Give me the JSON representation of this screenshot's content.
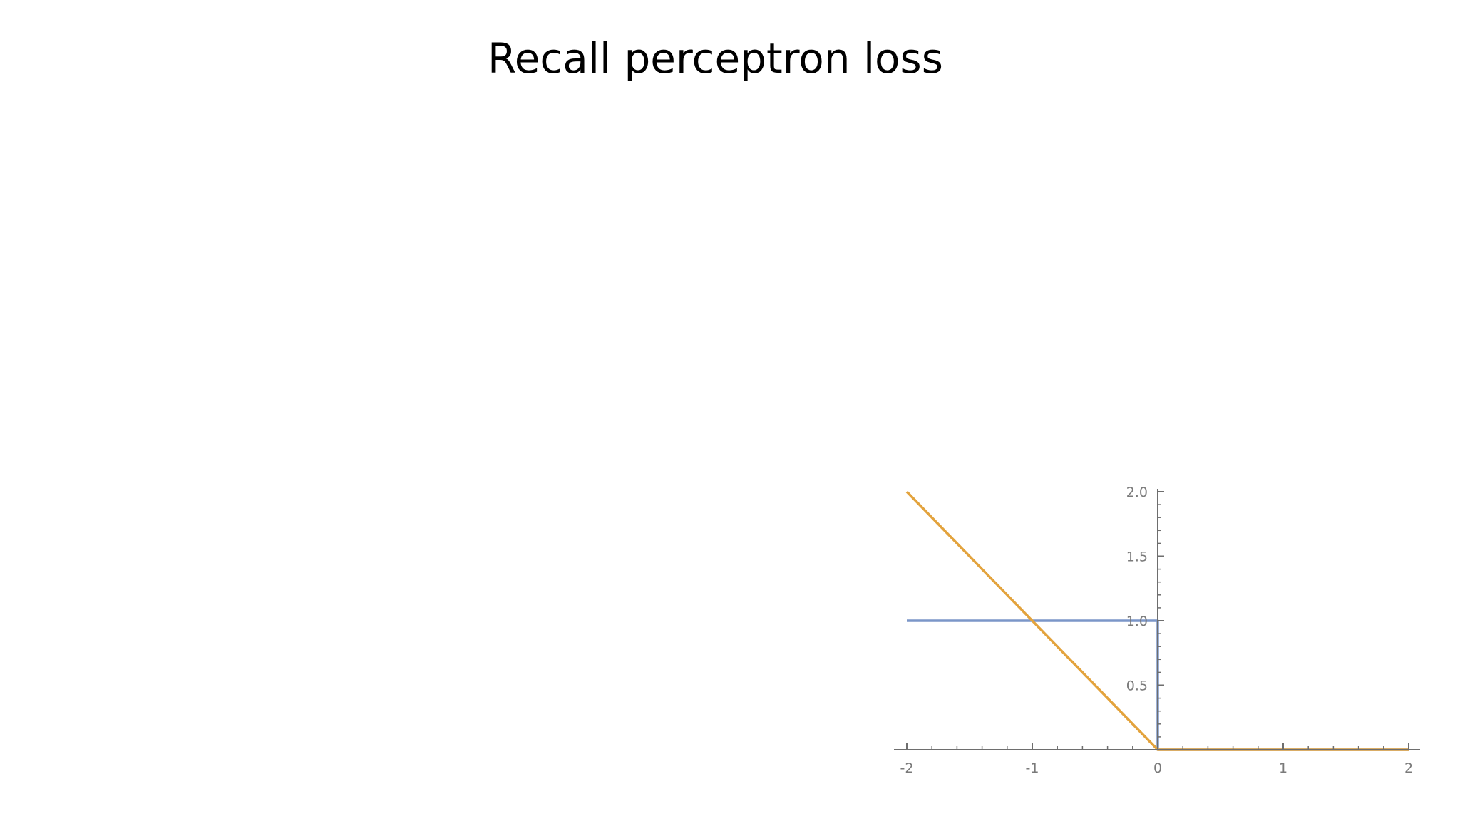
{
  "slide": {
    "title": "Recall perceptron loss"
  },
  "colors": {
    "axis": "#6e6e6e",
    "series_step": "#7b96c8",
    "series_perceptron": "#e3a33d",
    "tick_label": "#7a7a7a"
  },
  "chart_data": {
    "type": "line",
    "title": "",
    "xlabel": "",
    "ylabel": "",
    "xlim": [
      -2,
      2
    ],
    "ylim": [
      0,
      2
    ],
    "xticks": [
      -2,
      -1,
      0,
      1,
      2
    ],
    "xtick_labels": [
      "-2",
      "-1",
      "0",
      "1",
      "2"
    ],
    "yticks": [
      0.5,
      1.0,
      1.5,
      2.0
    ],
    "ytick_labels": [
      "0.5",
      "1.0",
      "1.5",
      "2.0"
    ],
    "grid": false,
    "legend": false,
    "series": [
      {
        "color": "#7b96c8",
        "x": [
          -2,
          0,
          0,
          2
        ],
        "y": [
          1,
          1,
          0,
          0
        ]
      },
      {
        "color": "#e3a33d",
        "x": [
          -2,
          0,
          2
        ],
        "y": [
          2,
          0,
          0
        ]
      }
    ]
  }
}
